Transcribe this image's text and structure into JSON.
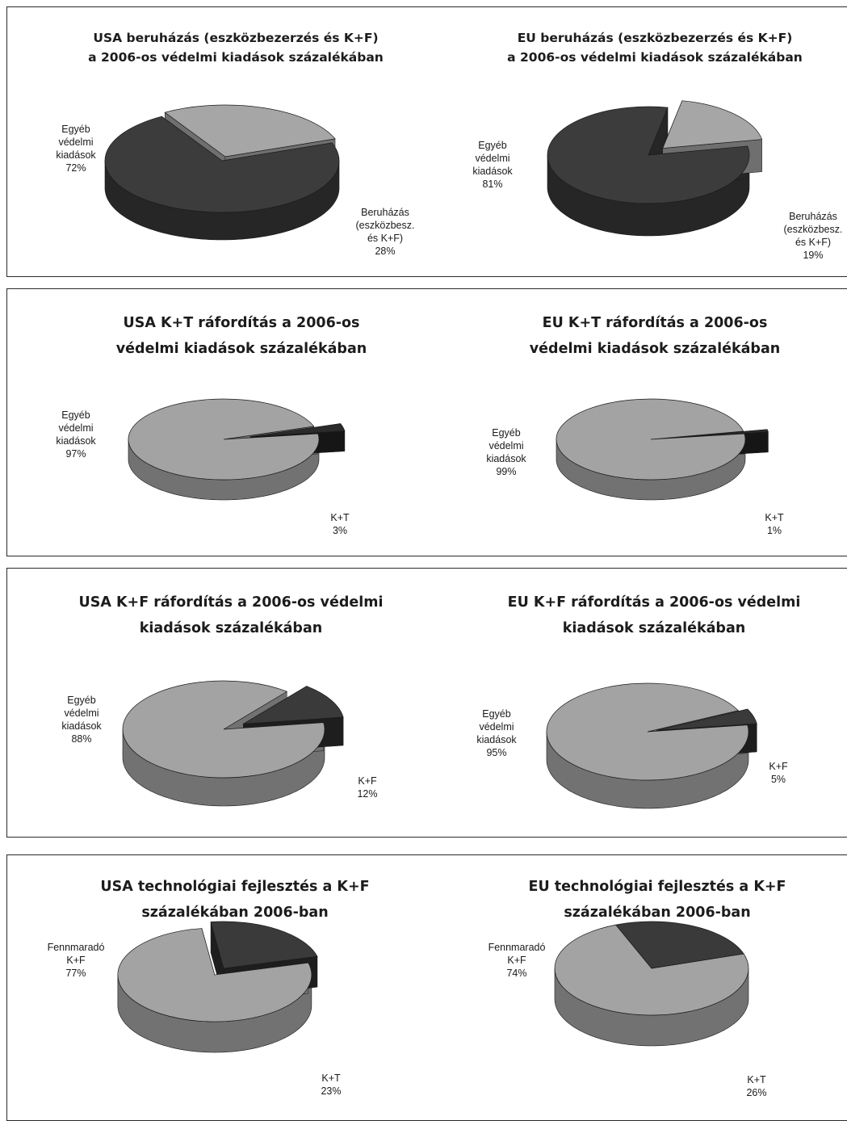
{
  "chart_data": [
    {
      "type": "pie",
      "title": [
        "USA beruházás (eszközbezerzés és K+F)",
        "a 2006-os védelmi kiadások százalékában"
      ],
      "slices": [
        {
          "label": [
            "Egyéb",
            "védelmi",
            "kiadások",
            "72%"
          ],
          "value": 72,
          "color": "#3c3c3c",
          "side": "#262626"
        },
        {
          "label": [
            "Beruházás",
            "(eszközbesz.",
            "és K+F)",
            "28%"
          ],
          "value": 28,
          "color": "#a6a6a6",
          "side": "#6f6f6f",
          "exploded": true
        }
      ]
    },
    {
      "type": "pie",
      "title": [
        "EU beruházás (eszközbezerzés és K+F)",
        "a 2006-os védelmi kiadások százalékában"
      ],
      "slices": [
        {
          "label": [
            "Egyéb",
            "védelmi",
            "kiadások",
            "81%"
          ],
          "value": 81,
          "color": "#3c3c3c",
          "side": "#262626"
        },
        {
          "label": [
            "Beruházás",
            "(eszközbesz.",
            "és K+F)",
            "19%"
          ],
          "value": 19,
          "color": "#a6a6a6",
          "side": "#6f6f6f",
          "exploded": true
        }
      ]
    },
    {
      "type": "pie",
      "title": [
        "USA K+T ráfordítás a 2006-os",
        "védelmi kiadások százalékában"
      ],
      "slices": [
        {
          "label": [
            "Egyéb",
            "védelmi",
            "kiadások",
            "97%"
          ],
          "value": 97,
          "color": "#a3a3a3",
          "side": "#727272"
        },
        {
          "label": [
            "K+T",
            "3%"
          ],
          "value": 3,
          "color": "#2b2b2b",
          "side": "#161616",
          "exploded": true
        }
      ]
    },
    {
      "type": "pie",
      "title": [
        "EU K+T ráfordítás a 2006-os",
        "védelmi kiadások százalékában"
      ],
      "slices": [
        {
          "label": [
            "Egyéb",
            "védelmi",
            "kiadások",
            "99%"
          ],
          "value": 99,
          "color": "#a3a3a3",
          "side": "#727272"
        },
        {
          "label": [
            "K+T",
            "1%"
          ],
          "value": 1,
          "color": "#2b2b2b",
          "side": "#161616",
          "exploded": true
        }
      ]
    },
    {
      "type": "pie",
      "title": [
        "USA K+F ráfordítás a 2006-os védelmi",
        "kiadások százalékában"
      ],
      "slices": [
        {
          "label": [
            "Egyéb",
            "védelmi",
            "kiadások",
            "88%"
          ],
          "value": 88,
          "color": "#a3a3a3",
          "side": "#727272"
        },
        {
          "label": [
            "K+F",
            "12%"
          ],
          "value": 12,
          "color": "#3a3a3a",
          "side": "#1e1e1e",
          "exploded": true
        }
      ]
    },
    {
      "type": "pie",
      "title": [
        "EU K+F ráfordítás a 2006-os védelmi",
        "kiadások százalékában"
      ],
      "slices": [
        {
          "label": [
            "Egyéb",
            "védelmi",
            "kiadások",
            "95%"
          ],
          "value": 95,
          "color": "#a3a3a3",
          "side": "#727272"
        },
        {
          "label": [
            "K+F",
            "5%"
          ],
          "value": 5,
          "color": "#3a3a3a",
          "side": "#1e1e1e",
          "exploded": true
        }
      ]
    },
    {
      "type": "pie",
      "title": [
        "USA  technológiai fejlesztés a K+F",
        "százalékában 2006-ban"
      ],
      "slices": [
        {
          "label": [
            "Fennmaradó",
            "K+F",
            "77%"
          ],
          "value": 77,
          "color": "#a3a3a3",
          "side": "#727272",
          "exploded": true
        },
        {
          "label": [
            "K+T",
            "23%"
          ],
          "value": 23,
          "color": "#3a3a3a",
          "side": "#1e1e1e"
        }
      ]
    },
    {
      "type": "pie",
      "title": [
        "EU technológiai fejlesztés a K+F",
        "százalékában 2006-ban"
      ],
      "slices": [
        {
          "label": [
            "Fennmaradó",
            "K+F",
            "74%"
          ],
          "value": 74,
          "color": "#a3a3a3",
          "side": "#727272"
        },
        {
          "label": [
            "K+T",
            "26%"
          ],
          "value": 26,
          "color": "#3a3a3a",
          "side": "#1e1e1e"
        }
      ]
    }
  ]
}
